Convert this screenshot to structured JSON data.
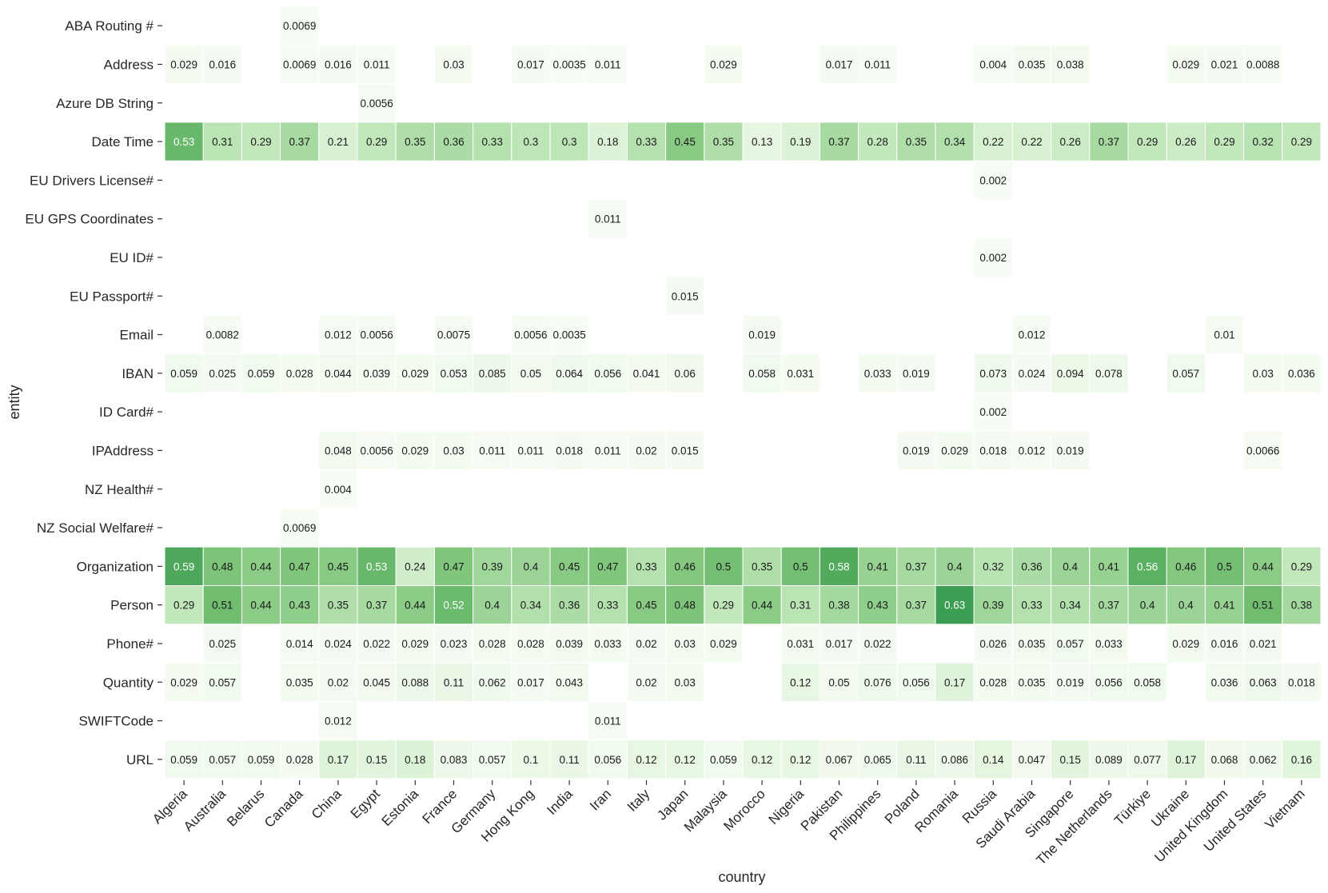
{
  "chart_data": {
    "type": "heatmap",
    "xlabel": "country",
    "ylabel": "entity",
    "colormap": "Greens",
    "color_range": [
      "#f7fcf5",
      "#3a9d52"
    ],
    "countries": [
      "Algeria",
      "Australia",
      "Belarus",
      "Canada",
      "China",
      "Egypt",
      "Estonia",
      "France",
      "Germany",
      "Hong Kong",
      "India",
      "Iran",
      "Italy",
      "Japan",
      "Malaysia",
      "Morocco",
      "Nigeria",
      "Pakistan",
      "Philippines",
      "Poland",
      "Romania",
      "Russia",
      "Saudi Arabia",
      "Singapore",
      "The Netherlands",
      "Türkiye",
      "Ukraine",
      "United Kingdom",
      "United States",
      "Vietnam"
    ],
    "entities": [
      "ABA Routing #",
      "Address",
      "Azure DB String",
      "Date Time",
      "EU Drivers License#",
      "EU GPS Coordinates",
      "EU ID#",
      "EU Passport#",
      "Email",
      "IBAN",
      "ID Card#",
      "IPAddress",
      "NZ Health#",
      "NZ Social Welfare#",
      "Organization",
      "Person",
      "Phone#",
      "Quantity",
      "SWIFTCode",
      "URL"
    ],
    "values": [
      [
        null,
        null,
        null,
        0.0069,
        null,
        null,
        null,
        null,
        null,
        null,
        null,
        null,
        null,
        null,
        null,
        null,
        null,
        null,
        null,
        null,
        null,
        null,
        null,
        null,
        null,
        null,
        null,
        null,
        null,
        null
      ],
      [
        0.029,
        0.016,
        null,
        0.0069,
        0.016,
        0.011,
        null,
        0.03,
        null,
        0.017,
        0.0035,
        0.011,
        null,
        null,
        0.029,
        null,
        null,
        0.017,
        0.011,
        null,
        null,
        0.004,
        0.035,
        0.038,
        null,
        null,
        0.029,
        0.021,
        0.0088,
        null
      ],
      [
        null,
        null,
        null,
        null,
        null,
        0.0056,
        null,
        null,
        null,
        null,
        null,
        null,
        null,
        null,
        null,
        null,
        null,
        null,
        null,
        null,
        null,
        null,
        null,
        null,
        null,
        null,
        null,
        null,
        null,
        null
      ],
      [
        0.53,
        0.31,
        0.29,
        0.37,
        0.21,
        0.29,
        0.35,
        0.36,
        0.33,
        0.3,
        0.3,
        0.18,
        0.33,
        0.45,
        0.35,
        0.13,
        0.19,
        0.37,
        0.28,
        0.35,
        0.34,
        0.22,
        0.22,
        0.26,
        0.37,
        0.29,
        0.26,
        0.29,
        0.32,
        0.29
      ],
      [
        null,
        null,
        null,
        null,
        null,
        null,
        null,
        null,
        null,
        null,
        null,
        null,
        null,
        null,
        null,
        null,
        null,
        null,
        null,
        null,
        null,
        0.002,
        null,
        null,
        null,
        null,
        null,
        null,
        null,
        null
      ],
      [
        null,
        null,
        null,
        null,
        null,
        null,
        null,
        null,
        null,
        null,
        null,
        0.011,
        null,
        null,
        null,
        null,
        null,
        null,
        null,
        null,
        null,
        null,
        null,
        null,
        null,
        null,
        null,
        null,
        null,
        null
      ],
      [
        null,
        null,
        null,
        null,
        null,
        null,
        null,
        null,
        null,
        null,
        null,
        null,
        null,
        null,
        null,
        null,
        null,
        null,
        null,
        null,
        null,
        0.002,
        null,
        null,
        null,
        null,
        null,
        null,
        null,
        null
      ],
      [
        null,
        null,
        null,
        null,
        null,
        null,
        null,
        null,
        null,
        null,
        null,
        null,
        null,
        0.015,
        null,
        null,
        null,
        null,
        null,
        null,
        null,
        null,
        null,
        null,
        null,
        null,
        null,
        null,
        null,
        null
      ],
      [
        null,
        0.0082,
        null,
        null,
        0.012,
        0.0056,
        null,
        0.0075,
        null,
        0.0056,
        0.0035,
        null,
        null,
        null,
        null,
        0.019,
        null,
        null,
        null,
        null,
        null,
        null,
        0.012,
        null,
        null,
        null,
        null,
        0.01,
        null,
        null
      ],
      [
        0.059,
        0.025,
        0.059,
        0.028,
        0.044,
        0.039,
        0.029,
        0.053,
        0.085,
        0.05,
        0.064,
        0.056,
        0.041,
        0.06,
        null,
        0.058,
        0.031,
        null,
        0.033,
        0.019,
        null,
        0.073,
        0.024,
        0.094,
        0.078,
        null,
        0.057,
        null,
        0.03,
        0.036
      ],
      [
        null,
        null,
        null,
        null,
        null,
        null,
        null,
        null,
        null,
        null,
        null,
        null,
        null,
        null,
        null,
        null,
        null,
        null,
        null,
        null,
        null,
        0.002,
        null,
        null,
        null,
        null,
        null,
        null,
        null,
        null
      ],
      [
        null,
        null,
        null,
        null,
        0.048,
        0.0056,
        0.029,
        0.03,
        0.011,
        0.011,
        0.018,
        0.011,
        0.02,
        0.015,
        null,
        null,
        null,
        null,
        null,
        0.019,
        0.029,
        0.018,
        0.012,
        0.019,
        null,
        null,
        null,
        null,
        0.0066,
        null
      ],
      [
        null,
        null,
        null,
        null,
        0.004,
        null,
        null,
        null,
        null,
        null,
        null,
        null,
        null,
        null,
        null,
        null,
        null,
        null,
        null,
        null,
        null,
        null,
        null,
        null,
        null,
        null,
        null,
        null,
        null,
        null
      ],
      [
        null,
        null,
        null,
        0.0069,
        null,
        null,
        null,
        null,
        null,
        null,
        null,
        null,
        null,
        null,
        null,
        null,
        null,
        null,
        null,
        null,
        null,
        null,
        null,
        null,
        null,
        null,
        null,
        null,
        null,
        null
      ],
      [
        0.59,
        0.48,
        0.44,
        0.47,
        0.45,
        0.53,
        0.24,
        0.47,
        0.39,
        0.4,
        0.45,
        0.47,
        0.33,
        0.46,
        0.5,
        0.35,
        0.5,
        0.58,
        0.41,
        0.37,
        0.4,
        0.32,
        0.36,
        0.4,
        0.41,
        0.56,
        0.46,
        0.5,
        0.44,
        0.29
      ],
      [
        0.29,
        0.51,
        0.44,
        0.43,
        0.35,
        0.37,
        0.44,
        0.52,
        0.4,
        0.34,
        0.36,
        0.33,
        0.45,
        0.48,
        0.29,
        0.44,
        0.31,
        0.38,
        0.43,
        0.37,
        0.63,
        0.39,
        0.33,
        0.34,
        0.37,
        0.4,
        0.4,
        0.41,
        0.51,
        0.38
      ],
      [
        null,
        0.025,
        null,
        0.014,
        0.024,
        0.022,
        0.029,
        0.023,
        0.028,
        0.028,
        0.039,
        0.033,
        0.02,
        0.03,
        0.029,
        null,
        0.031,
        0.017,
        0.022,
        null,
        null,
        0.026,
        0.035,
        0.057,
        0.033,
        null,
        0.029,
        0.016,
        0.021,
        null
      ],
      [
        0.029,
        0.057,
        null,
        0.035,
        0.02,
        0.045,
        0.088,
        0.11,
        0.062,
        0.017,
        0.043,
        null,
        0.02,
        0.03,
        null,
        null,
        0.12,
        0.05,
        0.076,
        0.056,
        0.17,
        0.028,
        0.035,
        0.019,
        0.056,
        0.058,
        null,
        0.036,
        0.063,
        0.018
      ],
      [
        null,
        null,
        null,
        null,
        0.012,
        null,
        null,
        null,
        null,
        null,
        null,
        0.011,
        null,
        null,
        null,
        null,
        null,
        null,
        null,
        null,
        null,
        null,
        null,
        null,
        null,
        null,
        null,
        null,
        null,
        null
      ],
      [
        0.059,
        0.057,
        0.059,
        0.028,
        0.17,
        0.15,
        0.18,
        0.083,
        0.057,
        0.1,
        0.11,
        0.056,
        0.12,
        0.12,
        0.059,
        0.12,
        0.12,
        0.067,
        0.065,
        0.11,
        0.086,
        0.14,
        0.047,
        0.15,
        0.089,
        0.077,
        0.17,
        0.068,
        0.062,
        0.16
      ]
    ]
  }
}
